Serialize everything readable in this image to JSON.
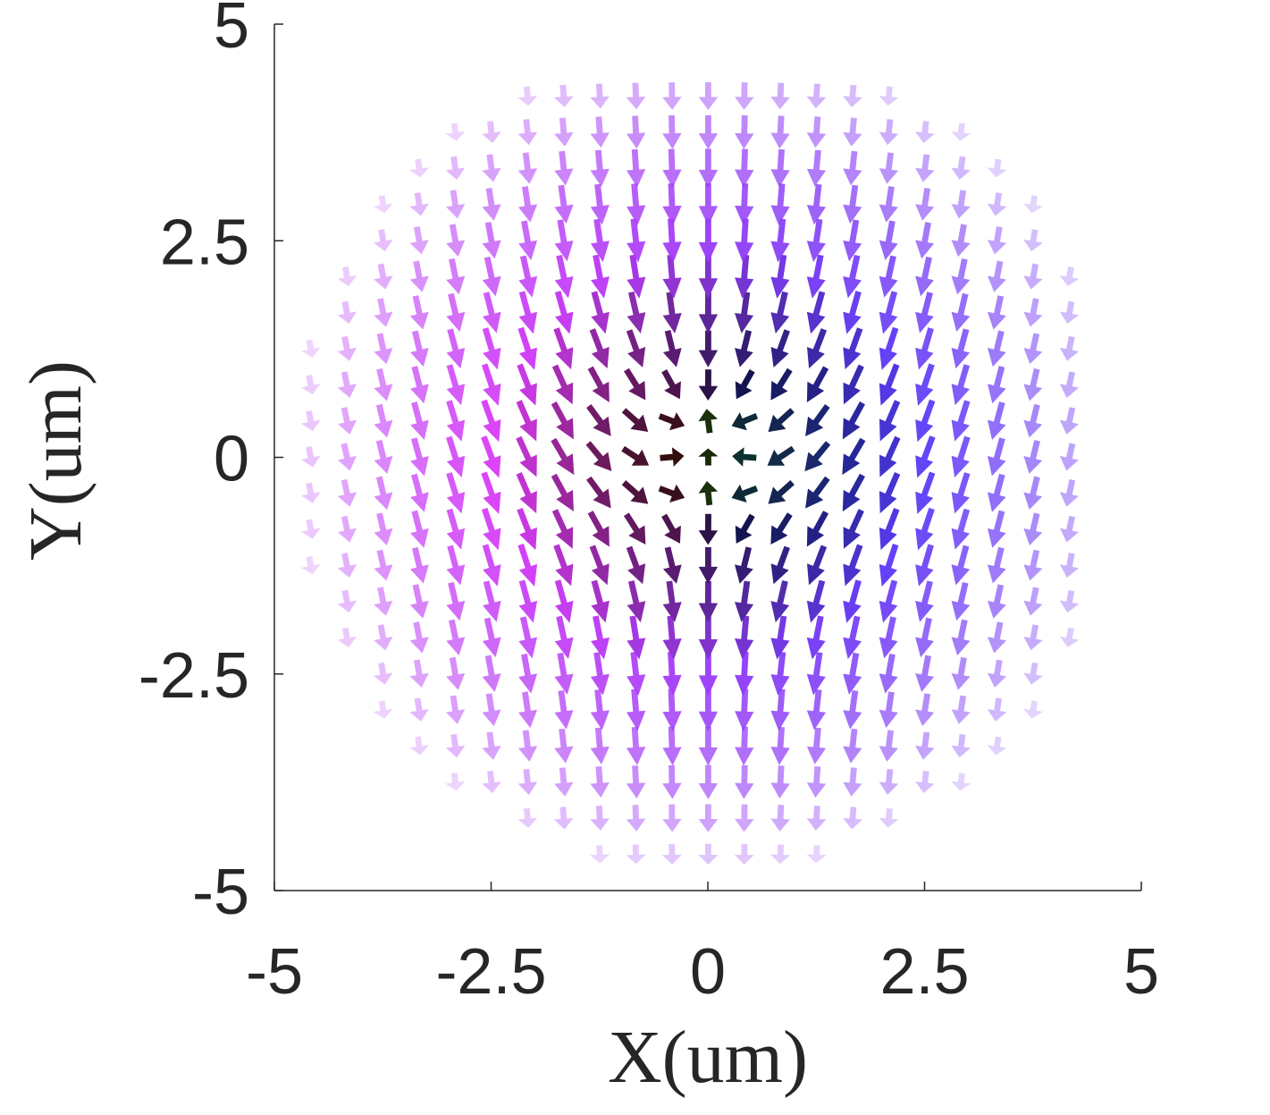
{
  "chart_data": {
    "type": "quiver",
    "title": "",
    "xlabel": "X(um)",
    "ylabel": "Y(um)",
    "xlim": [
      -5,
      5
    ],
    "ylim": [
      -5,
      5
    ],
    "xticks": [
      -5,
      -2.5,
      0,
      2.5,
      5
    ],
    "yticks": [
      -5,
      -2.5,
      0,
      2.5,
      5
    ],
    "xtick_labels": [
      "-5",
      "-2.5",
      "0",
      "2.5",
      "5"
    ],
    "ytick_labels": [
      "5",
      "2.5",
      "0",
      "-2.5",
      "-5"
    ],
    "grid": false,
    "field": {
      "description_units": "um",
      "grid_spacing": 0.4167,
      "grid_x_range": [
        -4.58,
        4.58
      ],
      "grid_y_range": [
        -4.58,
        4.58
      ],
      "vortex_centers": [
        [
          0,
          0.45
        ],
        [
          0,
          -0.45
        ]
      ],
      "vortex_core_radius": 2.0,
      "skyrmion_radius": 4.8
    }
  }
}
